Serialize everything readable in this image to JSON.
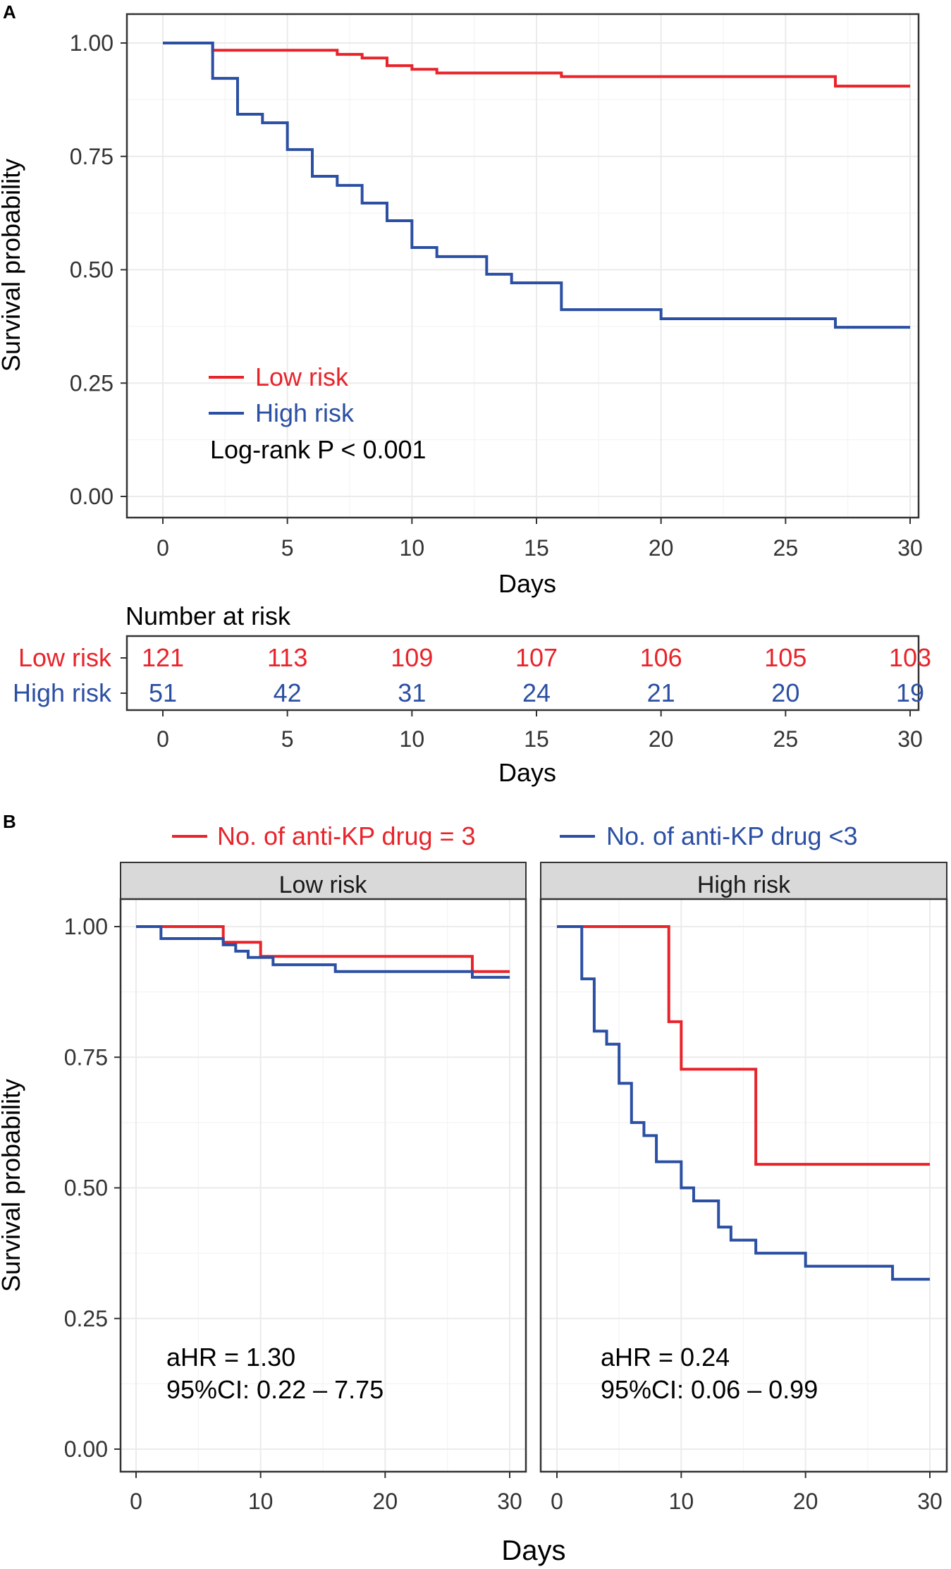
{
  "colors": {
    "low": "#e8242b",
    "high": "#2b4fa3",
    "strip": "#d9d9d9"
  },
  "panel_labels": {
    "a": "A",
    "b": "B"
  },
  "chart_data": [
    {
      "id": "A",
      "type": "line",
      "subtype": "kaplan-meier",
      "xlabel": "Days",
      "ylabel": "Survival probability",
      "xlim": [
        0,
        30
      ],
      "ylim": [
        0,
        1
      ],
      "xticks": [
        "0",
        "5",
        "10",
        "15",
        "20",
        "25",
        "30"
      ],
      "yticks": [
        "0.00",
        "0.25",
        "0.50",
        "0.75",
        "1.00"
      ],
      "series": [
        {
          "name": "Low risk",
          "color": "#e8242b",
          "steps": [
            [
              0,
              1.0
            ],
            [
              2,
              0.984
            ],
            [
              7,
              0.975
            ],
            [
              8,
              0.967
            ],
            [
              9,
              0.95
            ],
            [
              10,
              0.942
            ],
            [
              11,
              0.934
            ],
            [
              16,
              0.926
            ],
            [
              27,
              0.905
            ],
            [
              30,
              0.905
            ]
          ]
        },
        {
          "name": "High risk",
          "color": "#2b4fa3",
          "steps": [
            [
              0,
              1.0
            ],
            [
              2,
              0.922
            ],
            [
              3,
              0.843
            ],
            [
              4,
              0.824
            ],
            [
              5,
              0.765
            ],
            [
              6,
              0.706
            ],
            [
              7,
              0.686
            ],
            [
              8,
              0.647
            ],
            [
              9,
              0.608
            ],
            [
              10,
              0.549
            ],
            [
              11,
              0.529
            ],
            [
              13,
              0.49
            ],
            [
              14,
              0.471
            ],
            [
              16,
              0.412
            ],
            [
              20,
              0.392
            ],
            [
              27,
              0.373
            ],
            [
              30,
              0.373
            ]
          ]
        }
      ],
      "legend": [
        "Low risk",
        "High risk"
      ],
      "annotation": "Log-rank P < 0.001"
    },
    {
      "id": "risk-table",
      "type": "table",
      "title": "Number at risk",
      "xlabel": "Days",
      "xticks": [
        "0",
        "5",
        "10",
        "15",
        "20",
        "25",
        "30"
      ],
      "rows": [
        {
          "name": "Low risk",
          "values": [
            "121",
            "113",
            "109",
            "107",
            "106",
            "105",
            "103"
          ]
        },
        {
          "name": "High risk",
          "values": [
            "51",
            "42",
            "31",
            "24",
            "21",
            "20",
            "19"
          ]
        }
      ]
    },
    {
      "id": "B",
      "type": "line",
      "subtype": "kaplan-meier-faceted",
      "xlabel": "Days",
      "ylabel": "Survival probability",
      "xlim": [
        0,
        30
      ],
      "ylim": [
        0,
        1
      ],
      "xticks": [
        "0",
        "10",
        "20",
        "30"
      ],
      "yticks": [
        "0.00",
        "0.25",
        "0.50",
        "0.75",
        "1.00"
      ],
      "legend": [
        "No. of anti-KP drug = 3",
        "No. of anti-KP drug <3"
      ],
      "facets": [
        {
          "strip": "Low risk",
          "annotation": [
            "aHR = 1.30",
            "95%CI: 0.22 – 7.75"
          ],
          "series": [
            {
              "name": "No. of anti-KP drug = 3",
              "color": "#e8242b",
              "steps": [
                [
                  0,
                  1.0
                ],
                [
                  7,
                  0.97
                ],
                [
                  10,
                  0.943
                ],
                [
                  27,
                  0.914
                ],
                [
                  30,
                  0.914
                ]
              ]
            },
            {
              "name": "No. of anti-KP drug <3",
              "color": "#2b4fa3",
              "steps": [
                [
                  0,
                  1.0
                ],
                [
                  2,
                  0.977
                ],
                [
                  7,
                  0.965
                ],
                [
                  8,
                  0.953
                ],
                [
                  9,
                  0.941
                ],
                [
                  10,
                  0.941
                ],
                [
                  11,
                  0.927
                ],
                [
                  16,
                  0.914
                ],
                [
                  27,
                  0.903
                ],
                [
                  30,
                  0.903
                ]
              ]
            }
          ]
        },
        {
          "strip": "High risk",
          "annotation": [
            "aHR = 0.24",
            "95%CI: 0.06 – 0.99"
          ],
          "series": [
            {
              "name": "No. of anti-KP drug = 3",
              "color": "#e8242b",
              "steps": [
                [
                  0,
                  1.0
                ],
                [
                  9,
                  0.818
                ],
                [
                  10,
                  0.727
                ],
                [
                  16,
                  0.545
                ],
                [
                  30,
                  0.545
                ]
              ]
            },
            {
              "name": "No. of anti-KP drug <3",
              "color": "#2b4fa3",
              "steps": [
                [
                  0,
                  1.0
                ],
                [
                  2,
                  0.9
                ],
                [
                  3,
                  0.8
                ],
                [
                  4,
                  0.775
                ],
                [
                  5,
                  0.7
                ],
                [
                  6,
                  0.625
                ],
                [
                  7,
                  0.6
                ],
                [
                  8,
                  0.55
                ],
                [
                  10,
                  0.5
                ],
                [
                  11,
                  0.475
                ],
                [
                  13,
                  0.425
                ],
                [
                  14,
                  0.4
                ],
                [
                  16,
                  0.375
                ],
                [
                  20,
                  0.35
                ],
                [
                  27,
                  0.325
                ],
                [
                  30,
                  0.325
                ]
              ]
            }
          ]
        }
      ]
    }
  ]
}
